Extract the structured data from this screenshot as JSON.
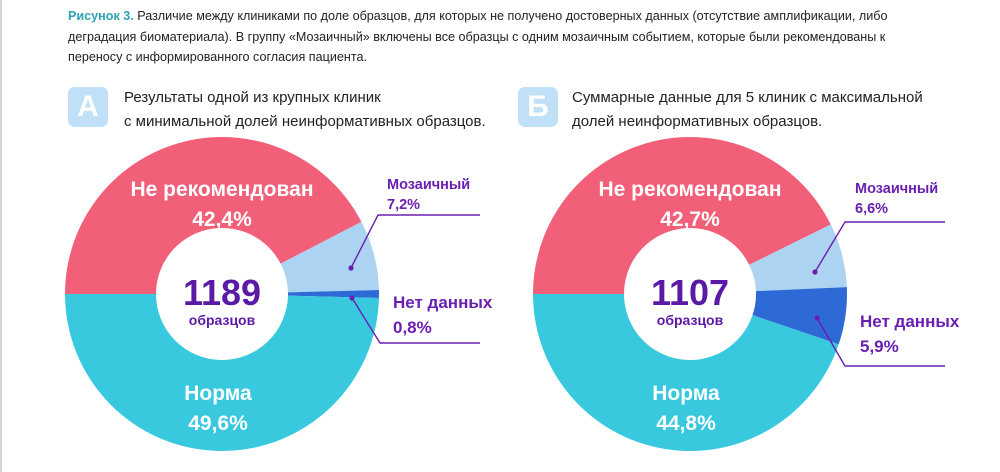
{
  "caption": {
    "label": "Рисунок 3.",
    "text": " Различие между клиниками по доле образцов, для которых не получено достоверных данных (отсутствие амплификации, либо деградация биоматериала). В группу «Мозаичный» включены все образцы с одним мозаичным событием, которые были рекомендованы к переносу с информированного согласия пациента."
  },
  "panels": [
    {
      "badge": "А",
      "title_line1": "Результаты одной из крупных клиник",
      "title_line2": "с минимальной долей неинформативных образцов."
    },
    {
      "badge": "Б",
      "title_line1": "Суммарные данные для 5 клиник с максимальной",
      "title_line2": "долей неинформативных образцов."
    }
  ],
  "colors": {
    "not_recommended": "#f25f78",
    "mosaic": "#acd4f2",
    "no_data": "#2e6ad6",
    "normal": "#39c9df",
    "label_purple": "#6a1fb0",
    "total_purple": "#5b1aa6"
  },
  "chart_data": [
    {
      "type": "pie",
      "title": "Результаты одной из крупных клиник с минимальной долей неинформативных образцов.",
      "total": "1189",
      "total_unit": "образцов",
      "slices": [
        {
          "name": "Не рекомендован",
          "value": 42.4,
          "label": "42,4%"
        },
        {
          "name": "Мозаичный",
          "value": 7.2,
          "label": "7,2%"
        },
        {
          "name": "Нет данных",
          "value": 0.8,
          "label": "0,8%"
        },
        {
          "name": "Норма",
          "value": 49.6,
          "label": "49,6%"
        }
      ]
    },
    {
      "type": "pie",
      "title": "Суммарные данные для 5 клиник с максимальной долей неинформативных образцов.",
      "total": "1107",
      "total_unit": "образцов",
      "slices": [
        {
          "name": "Не рекомендован",
          "value": 42.7,
          "label": "42,7%"
        },
        {
          "name": "Мозаичный",
          "value": 6.6,
          "label": "6,6%"
        },
        {
          "name": "Нет данных",
          "value": 5.9,
          "label": "5,9%"
        },
        {
          "name": "Норма",
          "value": 44.8,
          "label": "44,8%"
        }
      ]
    }
  ]
}
